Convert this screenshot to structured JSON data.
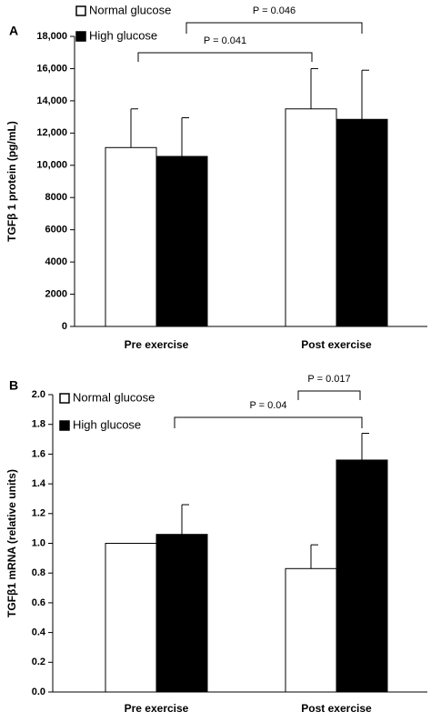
{
  "chart_data": [
    {
      "type": "bar",
      "panel_label": "A",
      "ylabel": "TGFβ 1 protein (pg/mL)",
      "categories": [
        "Pre exercise",
        "Post exercise"
      ],
      "series": [
        {
          "name": "Normal glucose",
          "color": "#ffffff",
          "values": [
            11100,
            13500
          ],
          "errors": [
            2400,
            2500
          ]
        },
        {
          "name": "High glucose",
          "color": "#000000",
          "values": [
            10550,
            12850
          ],
          "errors": [
            2400,
            3050
          ]
        }
      ],
      "ylim": [
        0,
        18000
      ],
      "yticks": [
        0,
        2000,
        4000,
        6000,
        8000,
        {
          "value": 10000,
          "label": "10,000"
        },
        {
          "value": 12000,
          "label": "12,000"
        },
        {
          "value": 14000,
          "label": "14,000"
        },
        {
          "value": 16000,
          "label": "16,000"
        },
        {
          "value": 18000,
          "label": "18,000"
        }
      ],
      "annotations": [
        "P = 0.046",
        "P = 0.041"
      ]
    },
    {
      "type": "bar",
      "panel_label": "B",
      "ylabel": "TGFβ1 mRNA (relative units)",
      "categories": [
        "Pre exercise",
        "Post exercise"
      ],
      "series": [
        {
          "name": "Normal glucose",
          "color": "#ffffff",
          "values": [
            1.0,
            0.83
          ],
          "errors": [
            0,
            0.16
          ]
        },
        {
          "name": "High glucose",
          "color": "#000000",
          "values": [
            1.06,
            1.56
          ],
          "errors": [
            0.2,
            0.18
          ]
        }
      ],
      "ylim": [
        0,
        2.0
      ],
      "yticks": [
        {
          "value": 0,
          "label": "0.0"
        },
        0.2,
        0.4,
        0.6,
        0.8,
        {
          "value": 1.0,
          "label": "1.0"
        },
        1.2,
        1.4,
        1.6,
        1.8,
        {
          "value": 2.0,
          "label": "2.0"
        }
      ],
      "annotations": [
        "P = 0.017",
        "P = 0.04"
      ]
    }
  ]
}
